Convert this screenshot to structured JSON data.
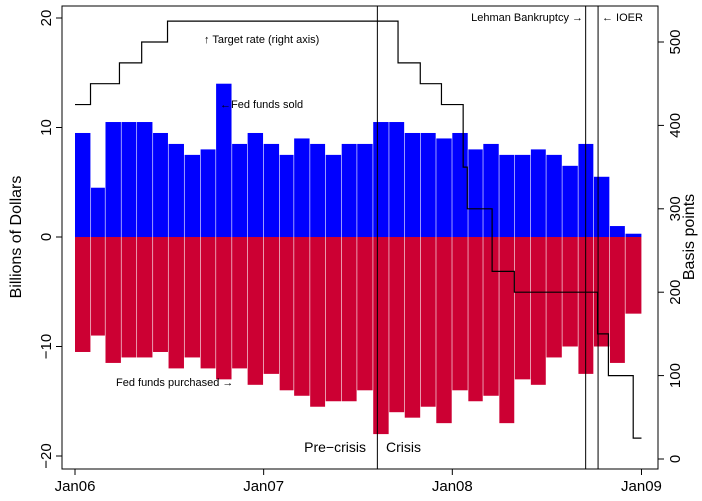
{
  "chart_data": {
    "type": "bar",
    "title": "",
    "ylabel": "Billions of Dollars",
    "y2label": "Basis points",
    "x_range": [
      "2006-01-01",
      "2009-01-02"
    ],
    "ylim": [
      -21,
      22
    ],
    "y2lim": [
      0,
      540
    ],
    "x_ticks": [
      {
        "label": "Jan06",
        "date": "2006-01-01"
      },
      {
        "label": "Jan07",
        "date": "2007-01-01"
      },
      {
        "label": "Jan08",
        "date": "2008-01-01"
      },
      {
        "label": "Jan09",
        "date": "2009-01-01"
      }
    ],
    "y_ticks": [
      {
        "label": "−20",
        "value": -20
      },
      {
        "label": "−10",
        "value": -10
      },
      {
        "label": "0",
        "value": 0
      },
      {
        "label": "10",
        "value": 10
      },
      {
        "label": "20",
        "value": 20
      }
    ],
    "y2_ticks": [
      {
        "label": "0",
        "value": 0
      },
      {
        "label": "100",
        "value": 100
      },
      {
        "label": "200",
        "value": 200
      },
      {
        "label": "300",
        "value": 300
      },
      {
        "label": "400",
        "value": 400
      },
      {
        "label": "500",
        "value": 500
      }
    ],
    "colors": {
      "sold": "#0000ff",
      "purchased": "#cc0033",
      "line": "#000000"
    },
    "series": [
      {
        "name": "Fed funds sold",
        "color": "#0000ff",
        "x": [
          "2006-01",
          "2006-02",
          "2006-03",
          "2006-04",
          "2006-05",
          "2006-06",
          "2006-07",
          "2006-08",
          "2006-09",
          "2006-10",
          "2006-11",
          "2006-12",
          "2007-01",
          "2007-02",
          "2007-03",
          "2007-04",
          "2007-05",
          "2007-06",
          "2007-07",
          "2007-08",
          "2007-09",
          "2007-10",
          "2007-11",
          "2007-12",
          "2008-01",
          "2008-02",
          "2008-03",
          "2008-04",
          "2008-05",
          "2008-06",
          "2008-07",
          "2008-08",
          "2008-09",
          "2008-10",
          "2008-11",
          "2008-12"
        ],
        "values": [
          9.5,
          4.5,
          10.5,
          10.5,
          10.5,
          9.5,
          8.5,
          7.5,
          8.0,
          14.0,
          8.5,
          9.5,
          8.5,
          7.5,
          9.0,
          8.5,
          7.5,
          8.5,
          8.5,
          10.5,
          10.5,
          9.5,
          9.5,
          9.0,
          9.5,
          8.0,
          8.5,
          7.5,
          7.5,
          8.0,
          7.5,
          6.5,
          8.5,
          5.5,
          1.0,
          0.3
        ]
      },
      {
        "name": "Fed funds purchased",
        "color": "#cc0033",
        "x": [
          "2006-01",
          "2006-02",
          "2006-03",
          "2006-04",
          "2006-05",
          "2006-06",
          "2006-07",
          "2006-08",
          "2006-09",
          "2006-10",
          "2006-11",
          "2006-12",
          "2007-01",
          "2007-02",
          "2007-03",
          "2007-04",
          "2007-05",
          "2007-06",
          "2007-07",
          "2007-08",
          "2007-09",
          "2007-10",
          "2007-11",
          "2007-12",
          "2008-01",
          "2008-02",
          "2008-03",
          "2008-04",
          "2008-05",
          "2008-06",
          "2008-07",
          "2008-08",
          "2008-09",
          "2008-10",
          "2008-11",
          "2008-12"
        ],
        "values": [
          -10.5,
          -9.0,
          -11.5,
          -11.0,
          -11.0,
          -10.5,
          -12.0,
          -11.0,
          -12.0,
          -13.0,
          -12.0,
          -13.5,
          -12.5,
          -14.0,
          -14.5,
          -15.5,
          -15.0,
          -15.0,
          -14.0,
          -18.0,
          -16.0,
          -16.5,
          -15.5,
          -17.0,
          -14.0,
          -15.0,
          -14.5,
          -17.0,
          -13.0,
          -13.5,
          -11.0,
          -10.0,
          -12.5,
          -10.0,
          -11.5,
          -7.0
        ]
      },
      {
        "name": "Target rate",
        "axis": "right",
        "type": "step",
        "x": [
          "2006-01-01",
          "2006-01-31",
          "2006-03-28",
          "2006-05-10",
          "2006-06-29",
          "2007-09-18",
          "2007-10-31",
          "2007-12-11",
          "2008-01-22",
          "2008-01-30",
          "2008-03-18",
          "2008-04-30",
          "2008-10-08",
          "2008-10-29",
          "2008-12-16",
          "2009-01-01"
        ],
        "values": [
          425,
          450,
          475,
          500,
          525,
          475,
          450,
          425,
          350,
          300,
          225,
          200,
          150,
          100,
          25,
          25
        ]
      }
    ],
    "vlines": [
      {
        "date": "2007-08-09",
        "label": "Pre−crisis",
        "label2": "Crisis"
      },
      {
        "date": "2008-09-15",
        "label": "Lehman Bankruptcy →"
      },
      {
        "date": "2008-10-09",
        "label": "← IOER"
      }
    ],
    "annotations": {
      "target": "↑ Target rate (right axis)",
      "sold": "←Fed funds sold",
      "purchased": "Fed funds purchased →"
    }
  }
}
